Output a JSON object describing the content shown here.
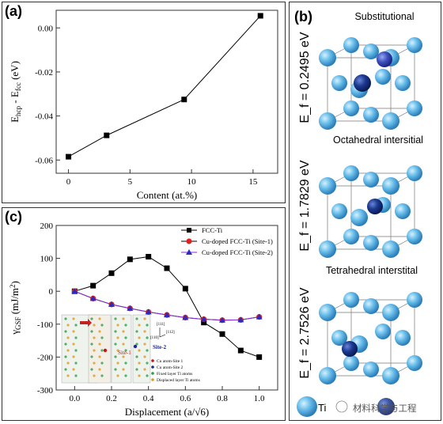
{
  "chart_data": [
    {
      "panel": "(a)",
      "type": "line",
      "xlabel": "Content (at.%)",
      "ylabel_main": "E",
      "ylabel_sub1": "hcp",
      "ylabel_mid": " - E",
      "ylabel_sub2": "fcc",
      "ylabel_unit": " (eV)",
      "xlim": [
        -1,
        17
      ],
      "ylim": [
        -0.066,
        0.008
      ],
      "xticks": [
        "0",
        "5",
        "10",
        "15"
      ],
      "yticks": [
        "0.00",
        "-0.02",
        "-0.04",
        "-0.06"
      ],
      "series": [
        {
          "x": [
            0,
            3.1,
            9.4,
            15.6
          ],
          "y": [
            -0.0585,
            -0.0488,
            -0.0325,
            0.0055
          ]
        }
      ]
    },
    {
      "panel": "(c)",
      "type": "line",
      "xlabel": "Displacement (a/√6)",
      "ylabel_main": "γ",
      "ylabel_sub": "GSF",
      "ylabel_unit": " (mJ/m",
      "ylabel_sup": "2",
      "ylabel_close": ")",
      "xlim": [
        -0.1,
        1.1
      ],
      "ylim": [
        -300,
        200
      ],
      "xticks": [
        "0.0",
        "0.2",
        "0.4",
        "0.6",
        "0.8",
        "1.0"
      ],
      "yticks": [
        "200",
        "100",
        "0",
        "-100",
        "-200",
        "-300"
      ],
      "legend_position": "top-right",
      "series": [
        {
          "name": "FCC-Ti",
          "marker": "square",
          "color": "#000000",
          "x": [
            0,
            0.1,
            0.2,
            0.3,
            0.4,
            0.5,
            0.6,
            0.7,
            0.8,
            0.9,
            1.0
          ],
          "y": [
            0,
            17,
            55,
            97,
            105,
            70,
            8,
            -95,
            -130,
            -180,
            -200
          ]
        },
        {
          "name": "Cu-doped FCC-Ti (Site-1)",
          "marker": "circle",
          "color": "#e02020",
          "x": [
            0,
            0.1,
            0.2,
            0.3,
            0.4,
            0.5,
            0.6,
            0.7,
            0.8,
            0.9,
            1.0
          ],
          "y": [
            0,
            -22,
            -40,
            -52,
            -63,
            -72,
            -80,
            -85,
            -88,
            -87,
            -78
          ]
        },
        {
          "name": "Cu-doped FCC-Ti (Site-2)",
          "marker": "triangle",
          "color": "#2b2bbf",
          "x": [
            0,
            0.1,
            0.2,
            0.3,
            0.4,
            0.5,
            0.6,
            0.7,
            0.8,
            0.9,
            1.0
          ],
          "y": [
            0,
            -22,
            -40,
            -52,
            -63,
            -72,
            -80,
            -85,
            -88,
            -87,
            -78
          ]
        }
      ],
      "inset": {
        "dir_top": "[111]",
        "dir_mid": "[112]",
        "dir_left": "[110]",
        "site1": "Site-1",
        "site2": "Site-2",
        "legend": [
          "Cu atom-Site 1",
          "Cu atom-Site 2",
          "Fixed layer Ti atoms",
          "Displaced layer Ti atoms"
        ]
      }
    }
  ],
  "panel_b": {
    "label": "(b)",
    "sections": [
      {
        "title": "Substitutional",
        "energy": "E_f = 0.2495 eV"
      },
      {
        "title": "Octahedral intersitial",
        "energy": "E_f = 1.7829 eV"
      },
      {
        "title": "Tetrahedral interstital",
        "energy": "E_f = 2.7526 eV"
      }
    ],
    "bottom_text": "Ti",
    "watermark": "材料科学与工程",
    "colors": {
      "ti": "#5ab6e6",
      "cu": "#1a3a8c",
      "cu2": "#3b4db0"
    }
  }
}
